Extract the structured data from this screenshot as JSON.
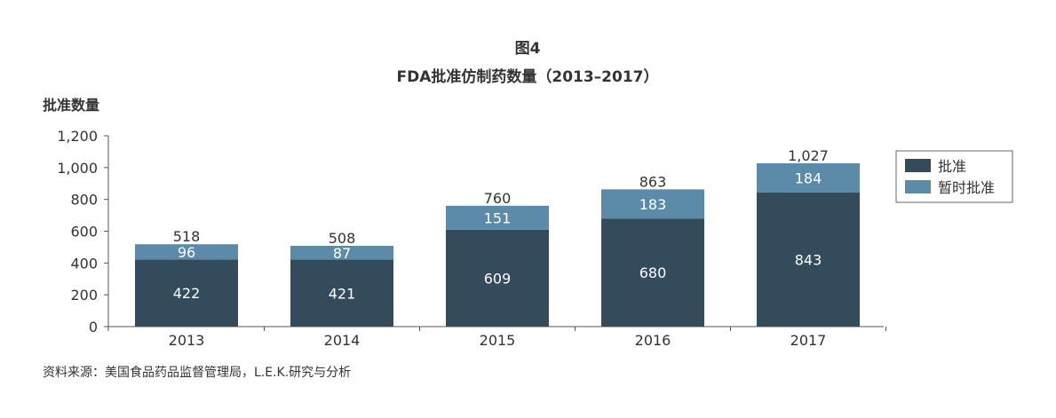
{
  "chart_data": {
    "type": "bar",
    "stacked": true,
    "title": "图4",
    "subtitle": "FDA批准仿制药数量（2013–2017）",
    "ylabel": "批准数量",
    "xlabel": "",
    "categories": [
      "2013",
      "2014",
      "2015",
      "2016",
      "2017"
    ],
    "series": [
      {
        "name": "批准",
        "values": [
          422,
          421,
          609,
          680,
          843
        ],
        "color": "#344b5c"
      },
      {
        "name": "暂时批准",
        "values": [
          96,
          87,
          151,
          183,
          184
        ],
        "color": "#5b8ba8"
      }
    ],
    "totals": [
      "518",
      "508",
      "760",
      "863",
      "1,027"
    ],
    "ylim": [
      0,
      1200
    ],
    "yticks": [
      0,
      200,
      400,
      600,
      800,
      1000,
      1200
    ],
    "ytick_labels": [
      "0",
      "200",
      "400",
      "600",
      "800",
      "1,000",
      "1,200"
    ],
    "grid": false,
    "legend_position": "right"
  },
  "source": "资料来源：美国食品药品监督管理局，L.E.K.研究与分析"
}
